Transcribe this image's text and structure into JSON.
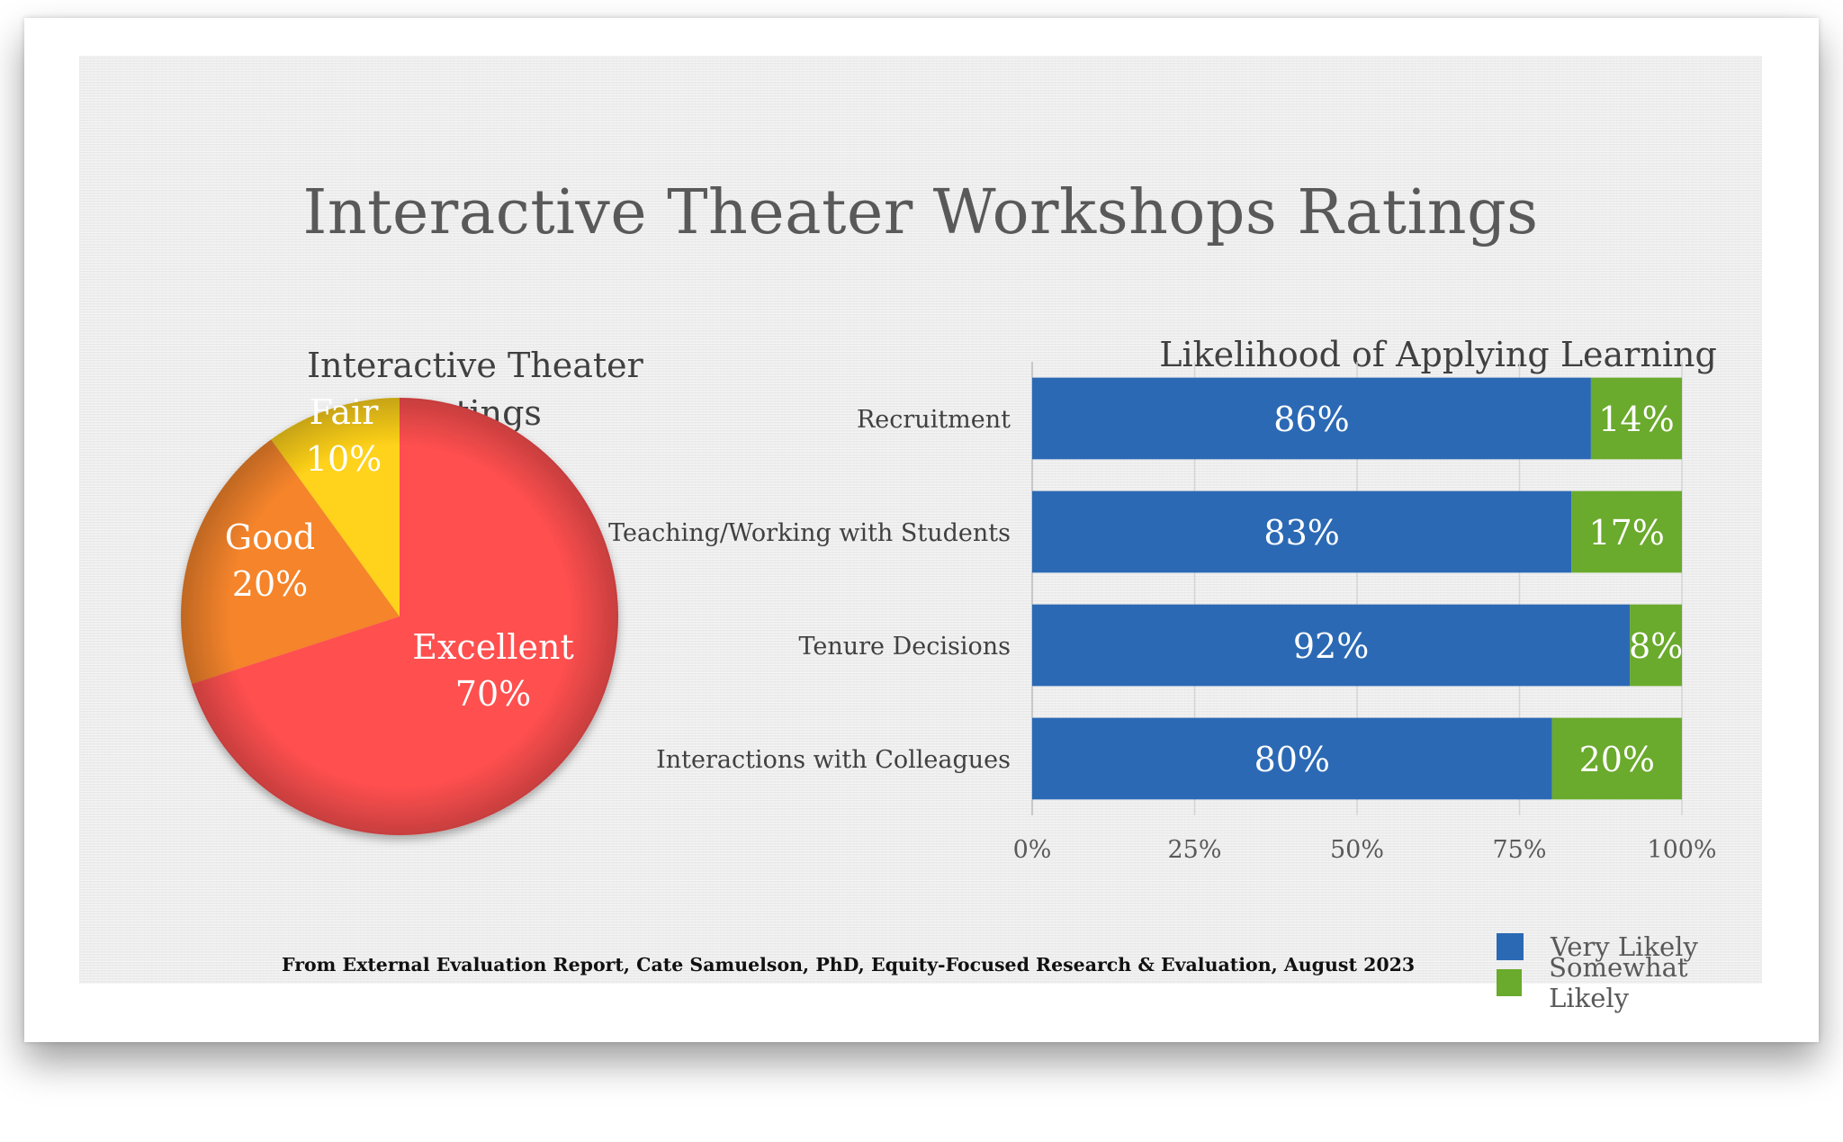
{
  "title": "Interactive Theater Workshops Ratings",
  "source": "From External Evaluation Report, Cate Samuelson, PhD, Equity-Focused Research & Evaluation, August 2023",
  "colors": {
    "excellent": "#ff4f4f",
    "good": "#f5842c",
    "fair": "#ffd21a",
    "very_likely": "#2b69b4",
    "somewhat_likely": "#6aaa2c"
  },
  "chart_data": [
    {
      "type": "pie",
      "title": "Interactive Theater Ratings",
      "categories": [
        "Excellent",
        "Good",
        "Fair"
      ],
      "values": [
        70,
        20,
        10
      ],
      "labels": [
        "70%",
        "20%",
        "10%"
      ]
    },
    {
      "type": "bar",
      "orientation": "horizontal",
      "stacked": true,
      "title": "Likelihood of Applying Learning",
      "categories": [
        "Recruitment",
        "Teaching/Working with Students",
        "Tenure Decisions",
        "Interactions with Colleagues"
      ],
      "series": [
        {
          "name": "Very Likely",
          "values": [
            86,
            83,
            92,
            80
          ]
        },
        {
          "name": "Somewhat Likely",
          "values": [
            14,
            17,
            8,
            20
          ]
        }
      ],
      "xlim": [
        0,
        100
      ],
      "x_ticks": [
        "0%",
        "25%",
        "50%",
        "75%",
        "100%"
      ],
      "grid": true,
      "legend": "bottom-right"
    }
  ]
}
